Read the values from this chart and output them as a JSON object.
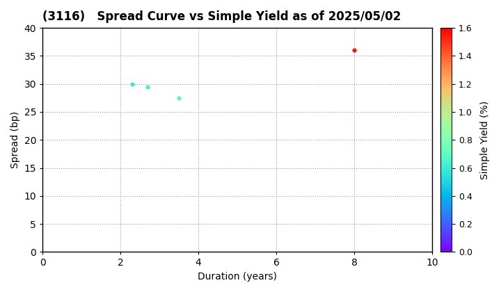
{
  "title": "(3116)   Spread Curve vs Simple Yield as of 2025/05/02",
  "xlabel": "Duration (years)",
  "ylabel": "Spread (bp)",
  "colorbar_label": "Simple Yield (%)",
  "xlim": [
    0,
    10
  ],
  "ylim": [
    0,
    40
  ],
  "xticks": [
    0,
    2,
    4,
    6,
    8,
    10
  ],
  "yticks": [
    0,
    5,
    10,
    15,
    20,
    25,
    30,
    35,
    40
  ],
  "colorbar_min": 0.0,
  "colorbar_max": 1.6,
  "colorbar_ticks": [
    0.0,
    0.2,
    0.4,
    0.6,
    0.8,
    1.0,
    1.2,
    1.4,
    1.6
  ],
  "points": [
    {
      "duration": 2.3,
      "spread": 30,
      "simple_yield": 0.58
    },
    {
      "duration": 2.7,
      "spread": 29.5,
      "simple_yield": 0.62
    },
    {
      "duration": 3.5,
      "spread": 27.5,
      "simple_yield": 0.68
    },
    {
      "duration": 8.0,
      "spread": 36,
      "simple_yield": 1.55
    }
  ],
  "marker_size": 20,
  "background_color": "#ffffff",
  "grid_color": "#999999",
  "grid_style": "dotted",
  "title_fontsize": 12,
  "axis_fontsize": 10,
  "tick_fontsize": 10
}
